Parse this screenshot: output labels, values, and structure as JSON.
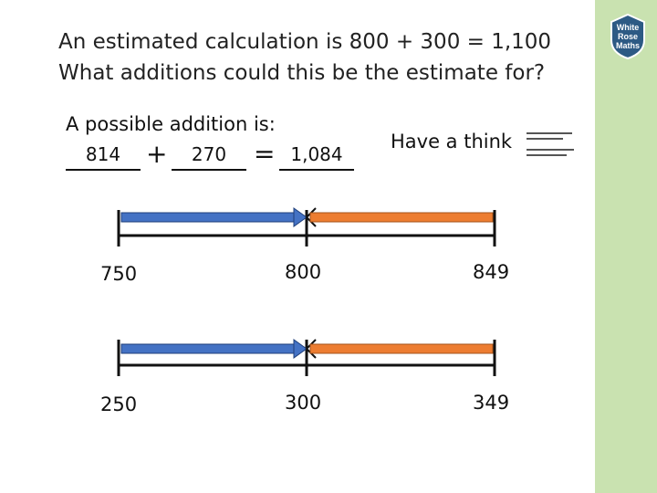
{
  "question": {
    "line1": "An estimated calculation is  800 + 300 = 1,100",
    "line2": "What additions could this be the estimate for?"
  },
  "example": {
    "intro": "A possible addition is:",
    "addend1": "814",
    "addend2": "270",
    "sum": "1,084",
    "plus": "+",
    "equals": "="
  },
  "prompt": "Have a think",
  "number_lines": [
    {
      "labels": [
        "750",
        "800",
        "849"
      ]
    },
    {
      "labels": [
        "250",
        "300",
        "349"
      ]
    }
  ],
  "colors": {
    "sidebar": "#c9e2b0",
    "blue_arrow": "#4472c4",
    "orange_arrow": "#ed7d31",
    "logo": "#2d5a84"
  },
  "logo": {
    "line1": "White",
    "line2": "Rose",
    "line3": "Maths"
  }
}
